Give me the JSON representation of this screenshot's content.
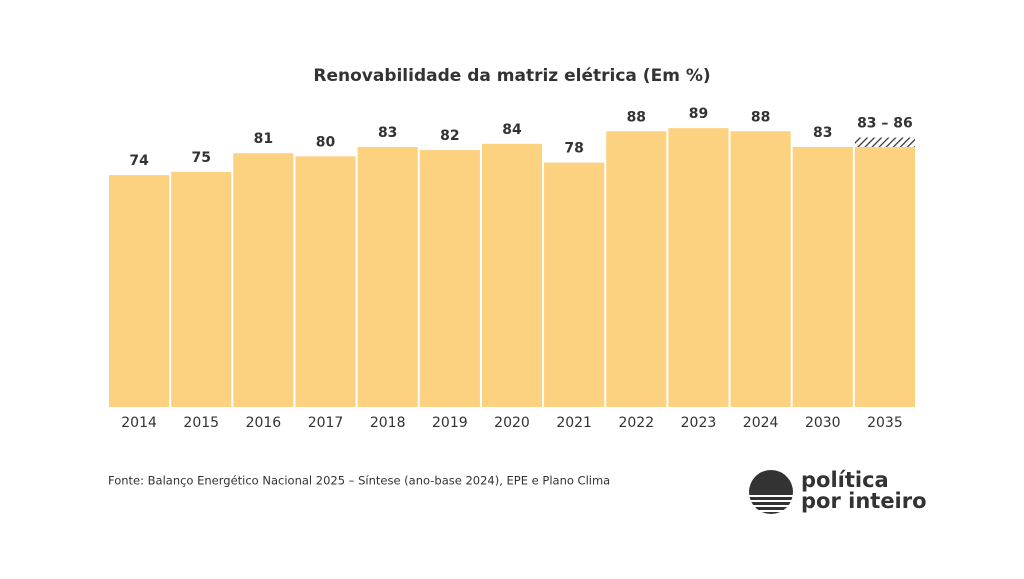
{
  "chart_data": {
    "type": "bar",
    "title": "Renovabilidade da matriz elétrica (Em %)",
    "categories": [
      "2014",
      "2015",
      "2016",
      "2017",
      "2018",
      "2019",
      "2020",
      "2021",
      "2022",
      "2023",
      "2024",
      "2030",
      "2035"
    ],
    "values": [
      74,
      75,
      81,
      80,
      83,
      82,
      84,
      78,
      88,
      89,
      88,
      83,
      83
    ],
    "range_high": [
      null,
      null,
      null,
      null,
      null,
      null,
      null,
      null,
      null,
      null,
      null,
      null,
      86
    ],
    "value_labels": [
      null,
      null,
      null,
      null,
      null,
      null,
      null,
      null,
      null,
      null,
      null,
      null,
      "83 – 86"
    ],
    "color": "#fcd17f",
    "ylim": [
      0,
      90
    ],
    "source": "Fonte: Balanço Energético Nacional 2025 – Síntese (ano-base 2024), EPE e Plano Clima"
  },
  "logo": {
    "line1": "política",
    "line2": "por inteiro"
  }
}
